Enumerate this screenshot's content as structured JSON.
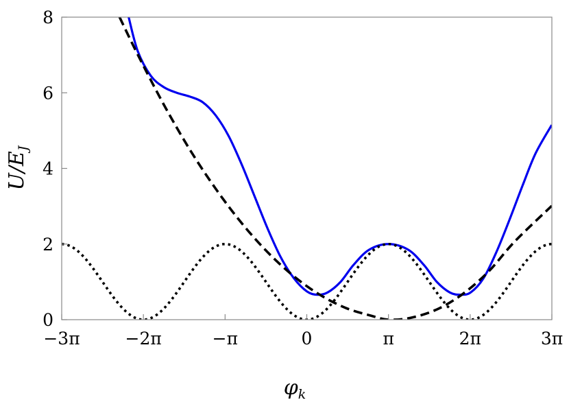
{
  "chart_data": {
    "type": "line",
    "xlabel": "φ",
    "xlabel_sub": "k",
    "ylabel": "U/E",
    "ylabel_sub": "J",
    "xlim": [
      -9.4248,
      9.4248
    ],
    "ylim": [
      0,
      8
    ],
    "x_ticks": [
      {
        "value": -9.4248,
        "label": "−3π"
      },
      {
        "value": -6.2832,
        "label": "−2π"
      },
      {
        "value": -3.1416,
        "label": "−π"
      },
      {
        "value": 0,
        "label": "0"
      },
      {
        "value": 3.1416,
        "label": "π"
      },
      {
        "value": 6.2832,
        "label": "2π"
      },
      {
        "value": 9.4248,
        "label": "3π"
      }
    ],
    "y_ticks": [
      {
        "value": 0,
        "label": "0"
      },
      {
        "value": 2,
        "label": "2"
      },
      {
        "value": 4,
        "label": "4"
      },
      {
        "value": 6,
        "label": "6"
      },
      {
        "value": 8,
        "label": "8"
      }
    ],
    "grid": false,
    "series": [
      {
        "style": "solid",
        "color": "#0000ee",
        "points": [
          [
            -6.85,
            8.0
          ],
          [
            -6.5,
            7.1
          ],
          [
            -6.0,
            6.45
          ],
          [
            -5.5,
            6.15
          ],
          [
            -5.0,
            6.0
          ],
          [
            -4.5,
            5.9
          ],
          [
            -4.0,
            5.75
          ],
          [
            -3.5,
            5.4
          ],
          [
            -3.0,
            4.85
          ],
          [
            -2.5,
            4.1
          ],
          [
            -2.0,
            3.25
          ],
          [
            -1.5,
            2.4
          ],
          [
            -1.0,
            1.65
          ],
          [
            -0.5,
            1.1
          ],
          [
            0.0,
            0.75
          ],
          [
            0.4,
            0.66
          ],
          [
            0.8,
            0.72
          ],
          [
            1.3,
            1.0
          ],
          [
            1.8,
            1.45
          ],
          [
            2.4,
            1.85
          ],
          [
            3.14,
            2.0
          ],
          [
            3.9,
            1.85
          ],
          [
            4.5,
            1.45
          ],
          [
            5.0,
            1.0
          ],
          [
            5.5,
            0.72
          ],
          [
            5.9,
            0.66
          ],
          [
            6.3,
            0.72
          ],
          [
            6.8,
            1.1
          ],
          [
            7.3,
            1.8
          ],
          [
            7.8,
            2.65
          ],
          [
            8.3,
            3.55
          ],
          [
            8.8,
            4.4
          ],
          [
            9.42,
            5.15
          ]
        ]
      },
      {
        "style": "dashed",
        "color": "#000000",
        "points": [
          [
            -7.2,
            8.0
          ],
          [
            -6.5,
            7.01
          ],
          [
            -5.5,
            5.69
          ],
          [
            -4.5,
            4.5
          ],
          [
            -3.5,
            3.46
          ],
          [
            -2.5,
            2.55
          ],
          [
            -1.5,
            1.78
          ],
          [
            -0.5,
            1.15
          ],
          [
            0.5,
            0.66
          ],
          [
            1.5,
            0.31
          ],
          [
            2.5,
            0.1
          ],
          [
            3.14,
            0.0
          ],
          [
            4.0,
            0.05
          ],
          [
            5.0,
            0.27
          ],
          [
            6.0,
            0.68
          ],
          [
            7.0,
            1.28
          ],
          [
            8.0,
            2.07
          ],
          [
            9.42,
            3.01
          ]
        ]
      },
      {
        "style": "dotted",
        "color": "#000000",
        "formula": "1 - cos(x)",
        "points": [
          [
            -9.4248,
            2.0
          ],
          [
            -7.854,
            1.0
          ],
          [
            -6.2832,
            0.0
          ],
          [
            -4.7124,
            1.0
          ],
          [
            -3.1416,
            2.0
          ],
          [
            -1.5708,
            1.0
          ],
          [
            0.0,
            0.0
          ],
          [
            1.5708,
            1.0
          ],
          [
            3.1416,
            2.0
          ],
          [
            4.7124,
            1.0
          ],
          [
            6.2832,
            0.0
          ],
          [
            7.854,
            1.0
          ],
          [
            9.4248,
            2.0
          ]
        ]
      }
    ]
  }
}
